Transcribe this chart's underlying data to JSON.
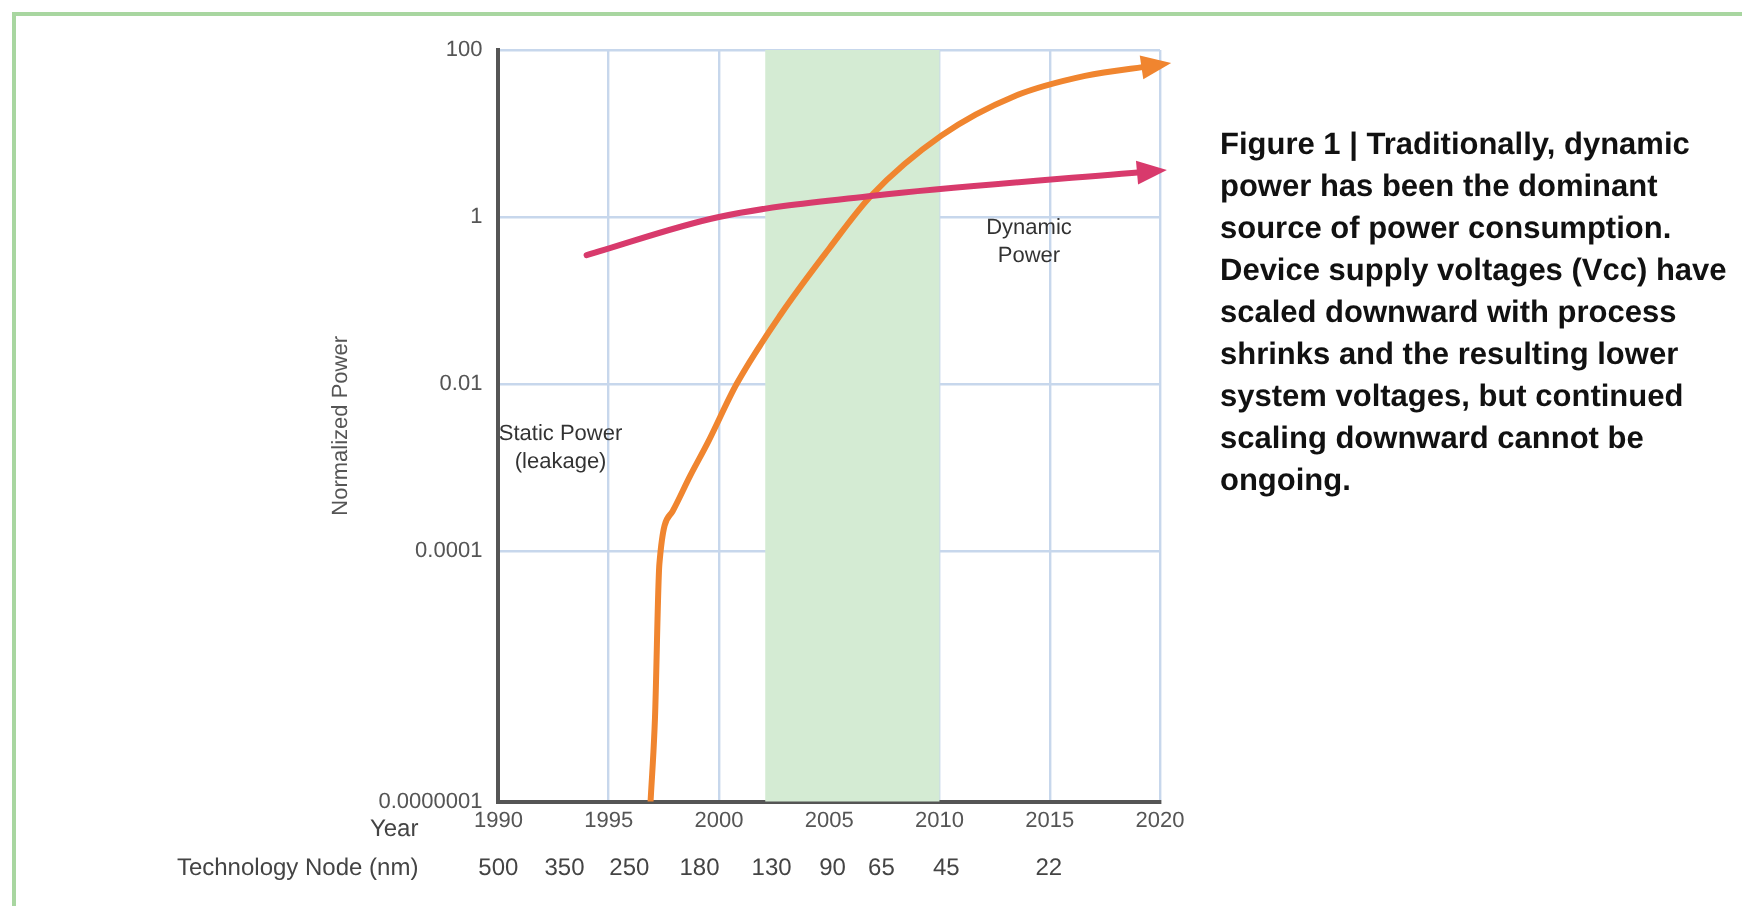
{
  "chart_data": {
    "type": "line",
    "ylabel": "Normalized Power",
    "xlabel": "Year",
    "log": "y",
    "grid": true,
    "marker": "none",
    "line_style": "solid",
    "legend": false,
    "xlim": [
      1990,
      2020
    ],
    "xticks": [
      1990,
      1995,
      2000,
      2005,
      2010,
      2015,
      2020
    ],
    "ylim": [
      1e-07,
      100
    ],
    "yticks": [
      {
        "value": 100,
        "label": "100"
      },
      {
        "value": 1,
        "label": "1"
      },
      {
        "value": 0.01,
        "label": "0.01"
      },
      {
        "value": 0.0001,
        "label": "0.0001"
      },
      {
        "value": 1e-07,
        "label": "0.0000001"
      }
    ],
    "bands": [
      {
        "axis": "x",
        "from": 2002.1,
        "to": 2010,
        "color": "#d4ebd3"
      }
    ],
    "series": [
      {
        "name": "Dynamic Power",
        "color": "#d83a6c",
        "x": [
          1994,
          2000,
          2007,
          2019.5
        ],
        "values": [
          0.35,
          1.0,
          1.8,
          3.5
        ]
      },
      {
        "name": "Static Power (leakage)",
        "color": "#f0852f",
        "x": [
          1996.9,
          1997.1,
          1997.3,
          1997.9,
          1998.7,
          1999.5,
          2000.8,
          2002.8,
          2005,
          2006.9,
          2010.1,
          2013.4,
          2016.6,
          2019.7
        ],
        "values": [
          1e-07,
          1e-06,
          7e-05,
          0.0003,
          0.0008,
          0.002,
          0.01,
          0.068,
          0.42,
          1.8,
          9.5,
          28,
          49,
          65
        ]
      }
    ],
    "annotations": [
      "Figure 1 | Traditionally, dynamic power has been the dominant source of power consumption. Device supply voltages (Vcc) have scaled downward with process shrinks and the resulting lower system voltages, but continued scaling downward cannot be ongoing.",
      "Technology Node (nm)",
      "500",
      "350",
      "250",
      "180",
      "130",
      "90",
      "65",
      "45",
      "22"
    ]
  }
}
